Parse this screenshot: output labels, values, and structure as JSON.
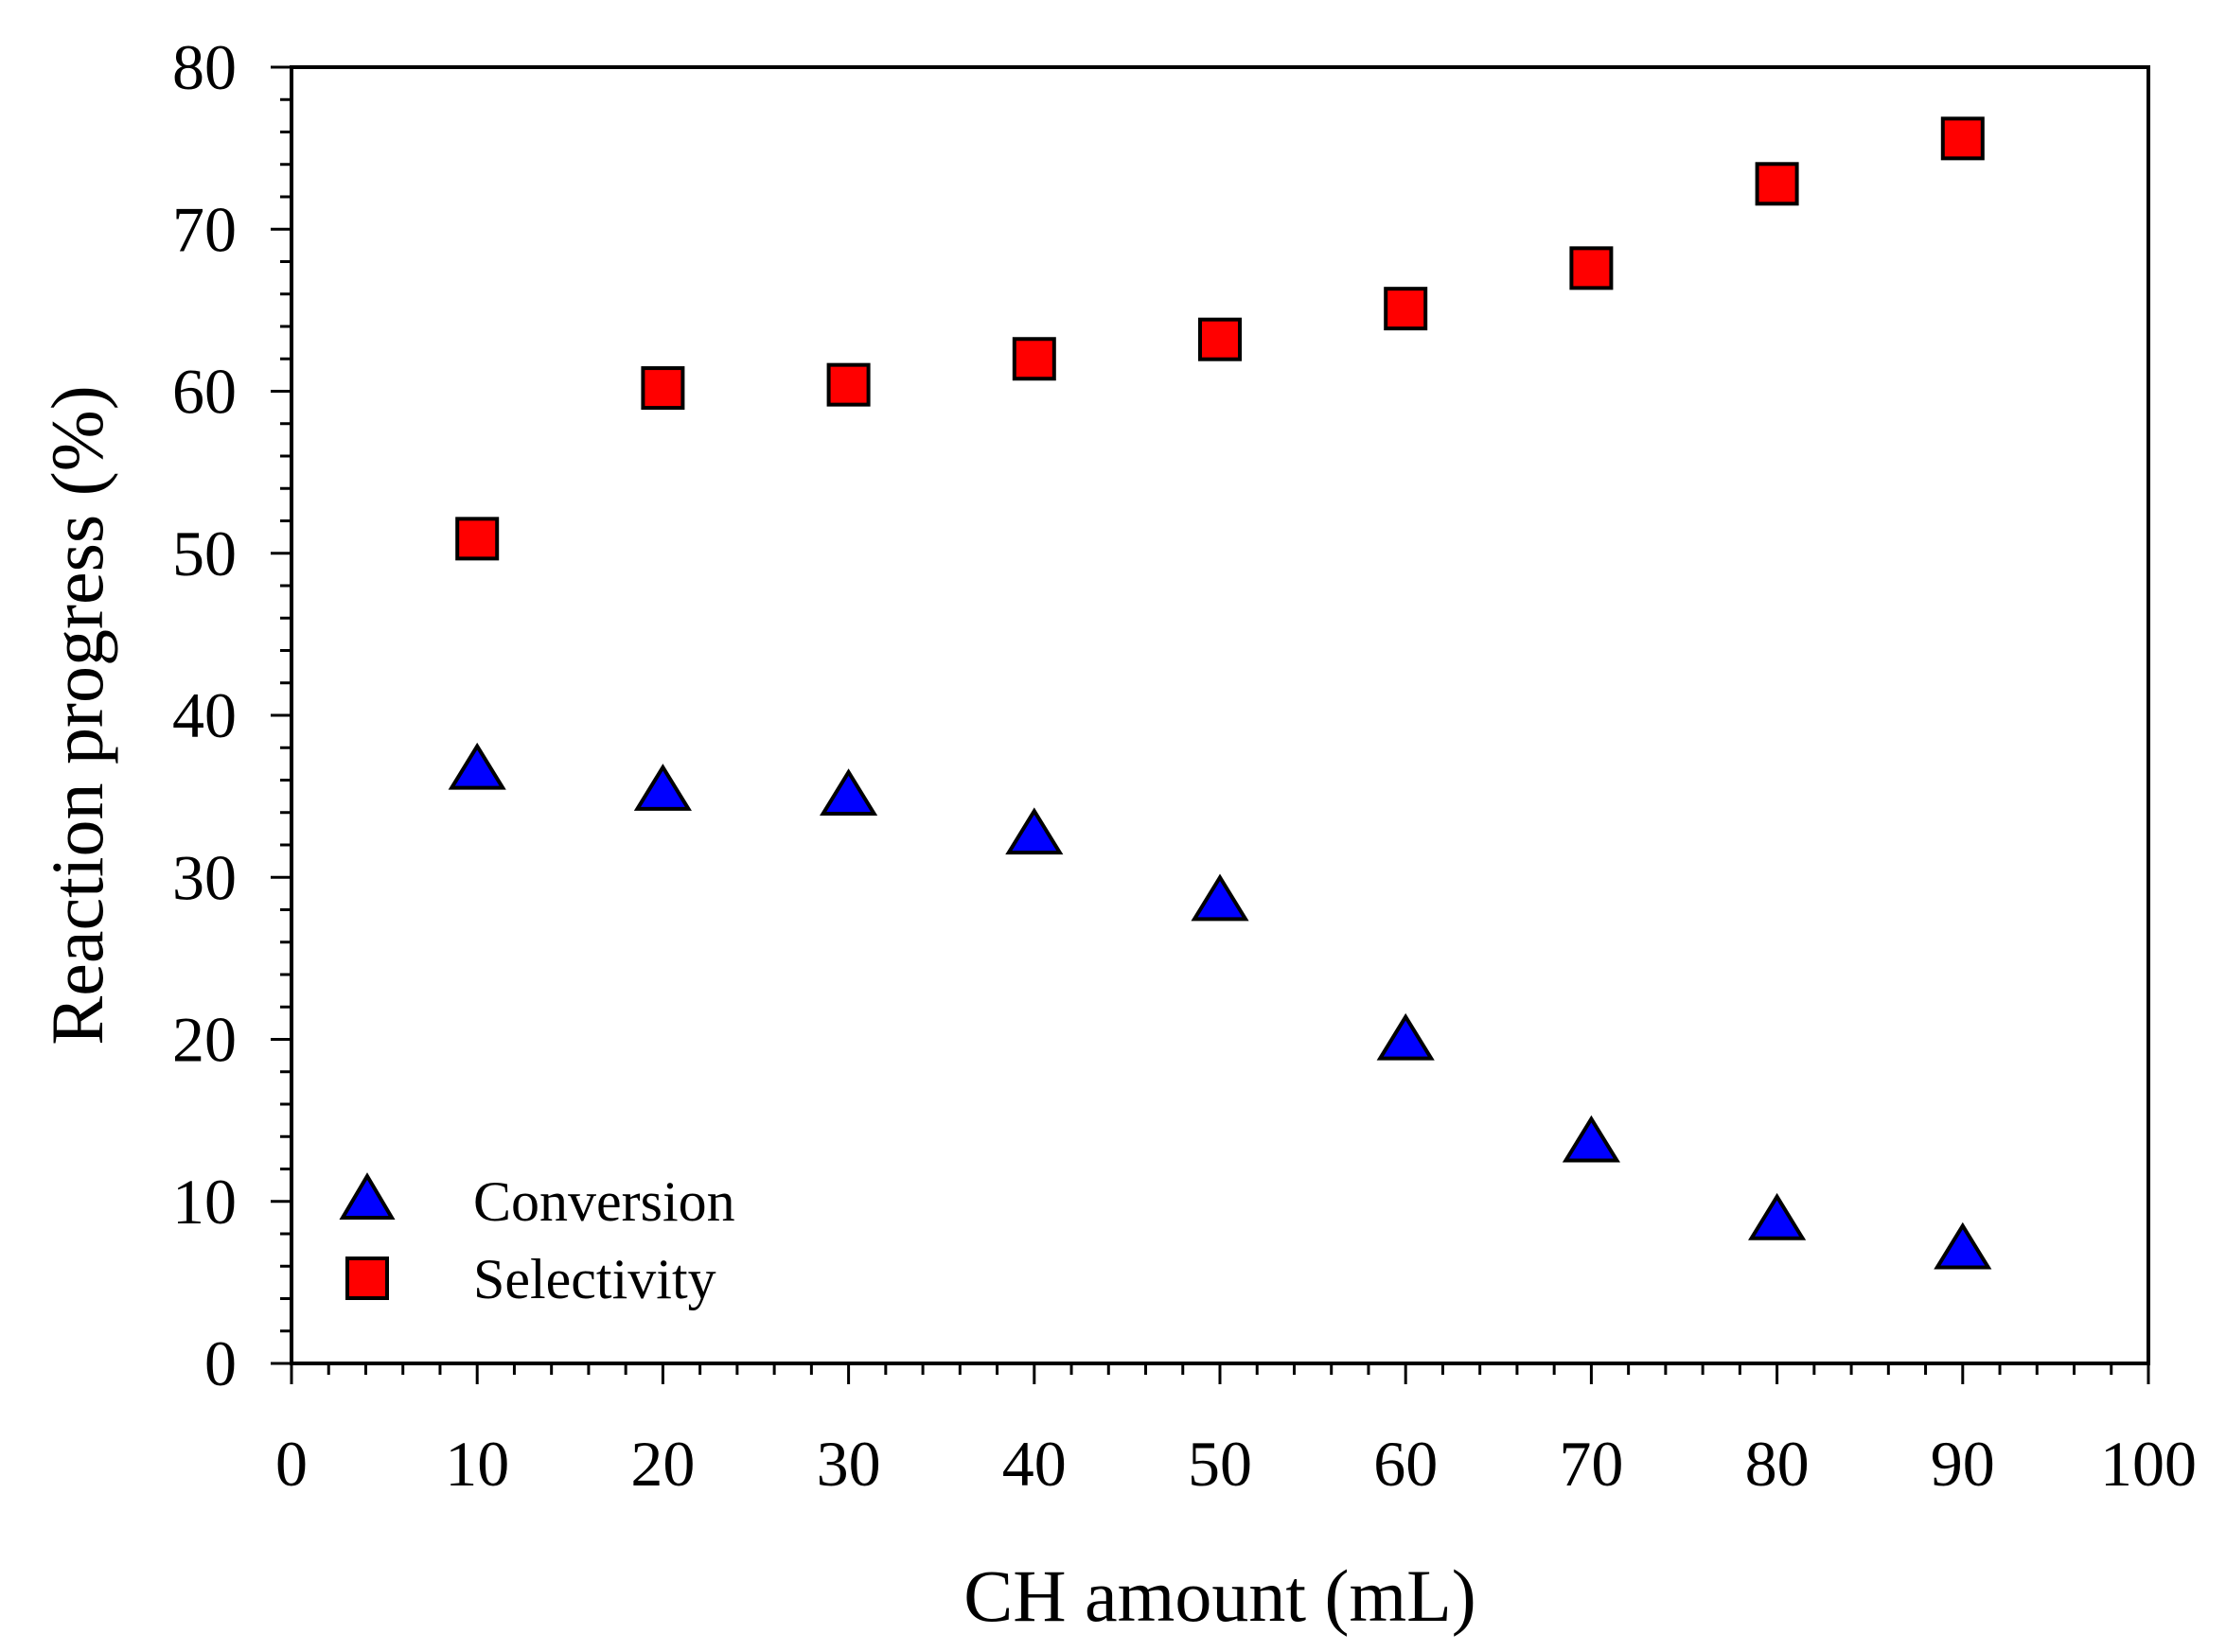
{
  "chart_data": {
    "type": "scatter",
    "title": "",
    "xlabel": "CH amount (mL)",
    "ylabel": "Reaction progress (%)",
    "xlim": [
      0,
      100
    ],
    "ylim": [
      0,
      80
    ],
    "xticks": [
      0,
      10,
      20,
      30,
      40,
      50,
      60,
      70,
      80,
      90,
      100
    ],
    "yticks": [
      0,
      10,
      20,
      30,
      40,
      50,
      60,
      70,
      80
    ],
    "grid": false,
    "legend_position": "bottom-left",
    "x": [
      10,
      20,
      30,
      40,
      50,
      60,
      70,
      80,
      90
    ],
    "series": [
      {
        "name": "Conversion",
        "marker": "triangle",
        "color": "#0000ff",
        "values": [
          36.5,
          35.2,
          34.9,
          32.5,
          28.4,
          19.8,
          13.5,
          8.7,
          6.9
        ]
      },
      {
        "name": "Selectivity",
        "marker": "square",
        "color": "#ff0000",
        "values": [
          50.9,
          60.2,
          60.4,
          62.0,
          63.2,
          65.1,
          67.6,
          72.8,
          75.6
        ]
      }
    ]
  }
}
